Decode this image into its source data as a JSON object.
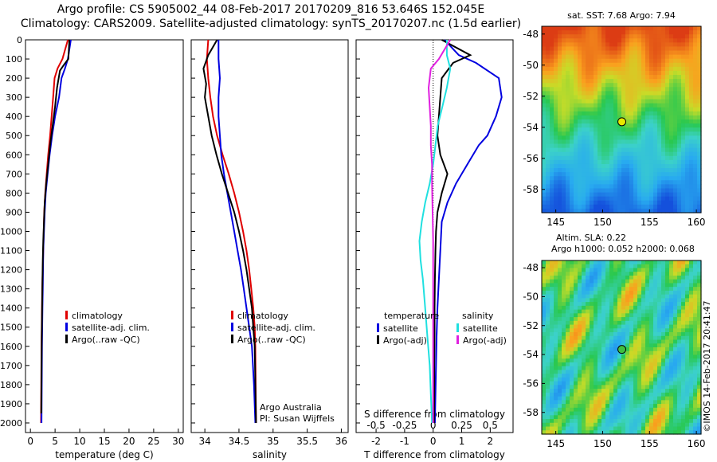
{
  "header": {
    "title_line1": "Argo profile: CS 5905002_44 08-Feb-2017 20170209_816 53.646S 152.045E",
    "title_line2": "Climatology: CARS2009. Satellite-adjusted climatology: synTS_20170207.nc (1.5d earlier)"
  },
  "colors": {
    "climatology": "#e00000",
    "satellite": "#0000e0",
    "argo": "#000000",
    "sat_salinity": "#20e0e0",
    "argo_adj_salinity": "#e020e0",
    "marker_sst": "#e8e800",
    "marker_sla": "#40c040"
  },
  "chart_data": [
    {
      "type": "line",
      "name": "temperature-profile",
      "xlabel": "temperature (deg C)",
      "ylabel": "",
      "xlim": [
        -1,
        31
      ],
      "ylim": [
        2050,
        0
      ],
      "xticks": [
        0,
        5,
        10,
        15,
        20,
        25,
        30
      ],
      "yticks": [
        0,
        100,
        200,
        300,
        400,
        500,
        600,
        700,
        800,
        900,
        1000,
        1100,
        1200,
        1300,
        1400,
        1500,
        1600,
        1700,
        1800,
        1900,
        2000
      ],
      "legend": [
        "climatology",
        "satellite-adj. clim.",
        "Argo(..raw -QC)"
      ],
      "series": [
        {
          "name": "climatology",
          "color": "climatology",
          "x": [
            7.6,
            6.5,
            5.5,
            4.9,
            4.6,
            4.3,
            4.0,
            3.6,
            3.3,
            3.0,
            2.8,
            2.7,
            2.6,
            2.5,
            2.4,
            2.35,
            2.3,
            2.25,
            2.2,
            2.15
          ],
          "y": [
            0,
            100,
            150,
            200,
            300,
            400,
            500,
            600,
            700,
            800,
            900,
            1000,
            1100,
            1200,
            1300,
            1400,
            1500,
            1600,
            1800,
            2000
          ]
        },
        {
          "name": "satellite-adj. clim.",
          "color": "satellite",
          "x": [
            8.2,
            7.6,
            7.0,
            6.3,
            5.8,
            5.0,
            4.4,
            3.9,
            3.5,
            3.1,
            2.9,
            2.75,
            2.6,
            2.55,
            2.5,
            2.45,
            2.4,
            2.35,
            2.3,
            2.25
          ],
          "y": [
            0,
            100,
            150,
            200,
            300,
            400,
            500,
            600,
            700,
            800,
            900,
            1000,
            1100,
            1200,
            1300,
            1400,
            1500,
            1600,
            1800,
            2000
          ]
        },
        {
          "name": "Argo(..raw -QC)",
          "color": "argo",
          "x": [
            7.9,
            7.7,
            6.8,
            6.0,
            5.4,
            5.0,
            4.5,
            4.0,
            3.6,
            3.2,
            2.9,
            2.75,
            2.6,
            2.5,
            2.45,
            2.4,
            2.35,
            2.3,
            2.25,
            2.2
          ],
          "y": [
            0,
            100,
            130,
            160,
            250,
            350,
            450,
            550,
            650,
            750,
            850,
            950,
            1050,
            1150,
            1250,
            1350,
            1450,
            1550,
            1750,
            1950
          ]
        }
      ]
    },
    {
      "type": "line",
      "name": "salinity-profile",
      "xlabel": "salinity",
      "ylabel": "",
      "xlim": [
        33.8,
        36.1
      ],
      "ylim": [
        2050,
        0
      ],
      "xticks": [
        34,
        34.5,
        35,
        35.5,
        36
      ],
      "xticklabels": [
        "34",
        "34.5",
        "35",
        "35.5",
        "36"
      ],
      "legend": [
        "climatology",
        "satellite-adj. clim.",
        "Argo(..raw -QC)"
      ],
      "annotation": [
        "Argo Australia",
        "PI: Susan Wijffels"
      ],
      "series": [
        {
          "name": "climatology",
          "color": "climatology",
          "x": [
            34.05,
            34.03,
            34.05,
            34.08,
            34.12,
            34.18,
            34.26,
            34.35,
            34.43,
            34.5,
            34.56,
            34.61,
            34.65,
            34.68,
            34.71,
            34.73,
            34.74,
            34.745,
            34.75
          ],
          "y": [
            0,
            100,
            200,
            300,
            400,
            500,
            600,
            700,
            800,
            900,
            1000,
            1100,
            1200,
            1300,
            1400,
            1500,
            1600,
            1800,
            2000
          ]
        },
        {
          "name": "satellite-adj. clim.",
          "color": "satellite",
          "x": [
            34.2,
            34.2,
            34.22,
            34.2,
            34.2,
            34.22,
            34.24,
            34.28,
            34.33,
            34.38,
            34.43,
            34.48,
            34.53,
            34.57,
            34.61,
            34.65,
            34.69,
            34.72,
            34.74
          ],
          "y": [
            0,
            100,
            200,
            300,
            400,
            500,
            600,
            700,
            800,
            900,
            1000,
            1100,
            1200,
            1300,
            1400,
            1500,
            1600,
            1800,
            2000
          ]
        },
        {
          "name": "Argo(..raw -QC)",
          "color": "argo",
          "x": [
            34.18,
            34.05,
            33.98,
            34.02,
            34.0,
            34.05,
            34.1,
            34.17,
            34.25,
            34.34,
            34.43,
            34.5,
            34.56,
            34.61,
            34.65,
            34.69,
            34.71,
            34.73,
            34.74,
            34.75
          ],
          "y": [
            0,
            80,
            150,
            230,
            300,
            400,
            500,
            600,
            700,
            800,
            900,
            1000,
            1100,
            1200,
            1300,
            1400,
            1500,
            1600,
            1800,
            2000
          ]
        }
      ]
    },
    {
      "type": "line",
      "name": "difference-profile",
      "xlabel": "T difference from climatology",
      "xlabel_top": "S difference from climatology",
      "xlim": [
        -2.7,
        2.8
      ],
      "ylim": [
        2050,
        0
      ],
      "xticks": [
        -2,
        -1,
        0,
        1,
        2
      ],
      "xticklabels": [
        "-2",
        "-1",
        "0",
        "1",
        "2"
      ],
      "sticks": [
        -0.5,
        -0.25,
        0,
        0.25,
        0.5
      ],
      "sticklabels": [
        "-0.5",
        "-0.25",
        "0",
        "0.25",
        "0.5"
      ],
      "legend_temperature": {
        "title": "temperature",
        "items": [
          "satellite",
          "Argo(-adj)"
        ]
      },
      "legend_salinity": {
        "title": "salinity",
        "items": [
          "satellite",
          "Argo(-adj)"
        ]
      },
      "series": [
        {
          "name": "temperature satellite",
          "color": "satellite",
          "x": [
            0.4,
            0.9,
            1.5,
            2.3,
            2.4,
            2.2,
            1.9,
            1.6,
            1.2,
            0.8,
            0.5,
            0.3,
            0.25,
            0.2,
            0.15,
            0.12,
            0.1,
            0.08,
            0.06
          ],
          "y": [
            0,
            80,
            120,
            200,
            300,
            400,
            500,
            550,
            650,
            750,
            850,
            950,
            1100,
            1250,
            1400,
            1550,
            1700,
            1850,
            2000
          ]
        },
        {
          "name": "temperature Argo(-adj)",
          "color": "argo",
          "x": [
            0.3,
            1.3,
            0.7,
            0.3,
            0.25,
            0.2,
            0.15,
            0.25,
            0.5,
            0.3,
            0.15,
            0.1,
            0.08,
            0.06,
            0.05,
            0.05,
            0.04,
            0.04,
            0.03
          ],
          "y": [
            0,
            80,
            120,
            200,
            300,
            400,
            500,
            600,
            700,
            800,
            900,
            1000,
            1100,
            1250,
            1400,
            1550,
            1700,
            1850,
            2000
          ]
        },
        {
          "name": "salinity satellite",
          "color": "sat_salinity",
          "x": [
            0.12,
            0.12,
            0.15,
            0.12,
            0.08,
            0.04,
            0.02,
            0.0,
            -0.03,
            -0.07,
            -0.1,
            -0.12,
            -0.11,
            -0.09,
            -0.07,
            -0.05,
            -0.03,
            -0.02,
            -0.01
          ],
          "y": [
            0,
            80,
            150,
            250,
            350,
            450,
            550,
            650,
            750,
            850,
            950,
            1050,
            1150,
            1250,
            1400,
            1550,
            1700,
            1850,
            2000
          ]
        },
        {
          "name": "salinity Argo(-adj)",
          "color": "argo_adj_salinity",
          "x": [
            0.15,
            0.05,
            -0.02,
            -0.04,
            -0.03,
            -0.02,
            -0.02,
            -0.01,
            -0.01,
            -0.005,
            0.0,
            0.0,
            0.0,
            0.0,
            0.0,
            0.0
          ],
          "y": [
            0,
            100,
            150,
            250,
            350,
            450,
            550,
            650,
            750,
            900,
            1050,
            1200,
            1400,
            1600,
            1800,
            2000
          ]
        }
      ]
    },
    {
      "type": "heatmap",
      "name": "sst-map",
      "title": "sat. SST: 7.68 Argo: 7.94",
      "xlim": [
        143.5,
        160.5
      ],
      "ylim": [
        -59.5,
        -47.5
      ],
      "xticks": [
        145,
        150,
        155,
        160
      ],
      "yticks": [
        -48,
        -50,
        -52,
        -54,
        -56,
        -58
      ],
      "marker": {
        "x": 152.045,
        "y": -53.646
      }
    },
    {
      "type": "heatmap",
      "name": "sla-map",
      "title": "Altim. SLA: 0.22",
      "subtitle": "Argo h1000: 0.052 h2000: 0.068",
      "xlim": [
        143.5,
        160.5
      ],
      "ylim": [
        -59.5,
        -47.5
      ],
      "xticks": [
        145,
        150,
        155,
        160
      ],
      "yticks": [
        -48,
        -50,
        -52,
        -54,
        -56,
        -58
      ],
      "marker": {
        "x": 152.045,
        "y": -53.646
      }
    }
  ],
  "footer": {
    "credit": "©IMOS 14-Feb-2017 20:41:47"
  }
}
